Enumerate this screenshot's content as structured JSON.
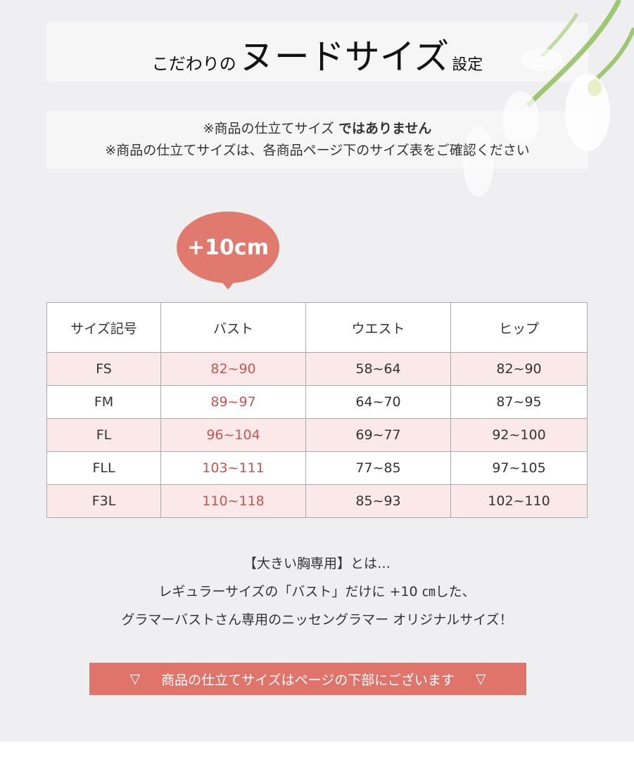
{
  "title": {
    "prefix": "こだわりの",
    "main": "ヌードサイズ",
    "suffix": "設定"
  },
  "notes": {
    "line1_regular": "※商品の仕立てサイズ ",
    "line1_bold": "ではありません",
    "line2": "※商品の仕立てサイズは、各商品ページ下のサイズ表をご確認ください"
  },
  "badge": "+10cm",
  "table": {
    "headers": [
      "サイズ記号",
      "バスト",
      "ウエスト",
      "ヒップ"
    ],
    "rows": [
      [
        "FS",
        "82~90",
        "58~64",
        "82~90"
      ],
      [
        "FM",
        "89~97",
        "64~70",
        "87~95"
      ],
      [
        "FL",
        "96~104",
        "69~77",
        "92~100"
      ],
      [
        "FLL",
        "103~111",
        "77~85",
        "97~105"
      ],
      [
        "F3L",
        "110~118",
        "85~93",
        "102~110"
      ]
    ]
  },
  "description": [
    "【大きい胸専用】とは…",
    "レギュラーサイズの「バスト」だけに +10 ㎝した、",
    "グラマーバストさん専用のニッセングラマー オリジナルサイズ！"
  ],
  "button": {
    "label": "商品の仕立てサイズはページの下部にございます",
    "icon": "▽"
  },
  "colors": {
    "accent": "#e0736a",
    "bust_text": "#c9554f",
    "pink_row": "#fbe8e9"
  }
}
